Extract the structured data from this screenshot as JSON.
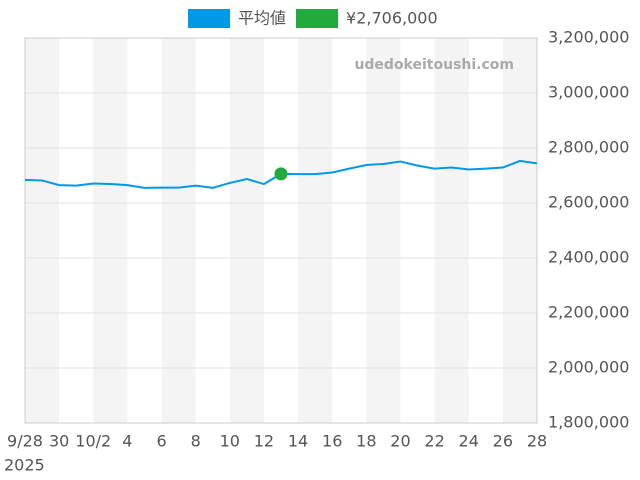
{
  "chart_data": {
    "type": "line",
    "categories": [
      "9/28",
      null,
      "30",
      null,
      "10/2",
      null,
      "4",
      null,
      "6",
      null,
      "8",
      null,
      "10",
      null,
      "12",
      null,
      "14",
      null,
      "16",
      null,
      "18",
      null,
      "20",
      null,
      "22",
      null,
      "24",
      null,
      "26",
      null,
      "28"
    ],
    "year_label": "2025",
    "watermark": "udedokeitoushi.com",
    "series": [
      {
        "name": "平均値",
        "color": "#0099e6",
        "values": [
          2684000,
          2682000,
          2665000,
          2663000,
          2671000,
          2669000,
          2665000,
          2655000,
          2656000,
          2656000,
          2663000,
          2655000,
          2673000,
          2687000,
          2669000,
          2706000,
          2705000,
          2705000,
          2711000,
          2725000,
          2738000,
          2742000,
          2751000,
          2736000,
          2725000,
          2729000,
          2722000,
          2725000,
          2729000,
          2753000,
          2744000
        ]
      },
      {
        "name": "¥2,706,000",
        "color": "#22aa3c",
        "values": [
          null,
          null,
          null,
          null,
          null,
          null,
          null,
          null,
          null,
          null,
          null,
          null,
          null,
          null,
          null,
          2706000,
          null,
          null,
          null,
          null,
          null,
          null,
          null,
          null,
          null,
          null,
          null,
          null,
          null,
          null,
          null
        ]
      }
    ],
    "ylim": [
      1800000,
      3200000
    ],
    "yticks": [
      {
        "value": 1800000,
        "label": "1,800,000"
      },
      {
        "value": 2000000,
        "label": "2,000,000"
      },
      {
        "value": 2200000,
        "label": "2,200,000"
      },
      {
        "value": 2400000,
        "label": "2,400,000"
      },
      {
        "value": 2600000,
        "label": "2,600,000"
      },
      {
        "value": 2800000,
        "label": "2,800,000"
      },
      {
        "value": 3000000,
        "label": "3,000,000"
      },
      {
        "value": 3200000,
        "label": "3,200,000"
      }
    ],
    "grid": true
  }
}
